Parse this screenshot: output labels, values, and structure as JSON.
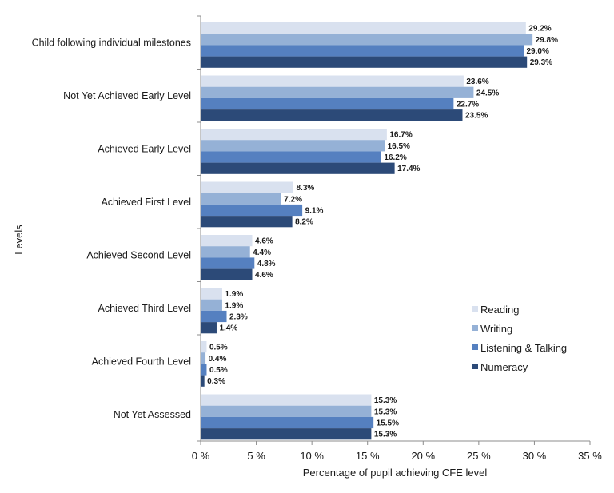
{
  "chart_data": {
    "type": "bar",
    "orientation": "horizontal",
    "title": "",
    "xlabel": "Percentage of pupil achieving  CFE level",
    "ylabel": "Levels",
    "xlim": [
      0,
      35
    ],
    "xticks": [
      "0 %",
      "5 %",
      "10 %",
      "15 %",
      "20 %",
      "25 %",
      "30 %",
      "35 %"
    ],
    "grid": false,
    "legend_position": "right",
    "categories": [
      "Child following individual milestones",
      "Not Yet Achieved Early Level",
      "Achieved Early Level",
      "Achieved First Level",
      "Achieved Second Level",
      "Achieved Third Level",
      "Achieved Fourth Level",
      "Not Yet Assessed"
    ],
    "series": [
      {
        "name": "Reading",
        "color": "#d9e1ef",
        "values": [
          29.2,
          23.6,
          16.7,
          8.3,
          4.6,
          1.9,
          0.5,
          15.3
        ],
        "labels": [
          "29.2%",
          "23.6%",
          "16.7%",
          "8.3%",
          "4.6%",
          "1.9%",
          "0.5%",
          "15.3%"
        ]
      },
      {
        "name": "Writing",
        "color": "#95b1d6",
        "values": [
          29.8,
          24.5,
          16.5,
          7.2,
          4.4,
          1.9,
          0.4,
          15.3
        ],
        "labels": [
          "29.8%",
          "24.5%",
          "16.5%",
          "7.2%",
          "4.4%",
          "1.9%",
          "0.4%",
          "15.3%"
        ]
      },
      {
        "name": "Listening & Talking",
        "color": "#5580c0",
        "values": [
          29.0,
          22.7,
          16.2,
          9.1,
          4.8,
          2.3,
          0.5,
          15.5
        ],
        "labels": [
          "29.0%",
          "22.7%",
          "16.2%",
          "9.1%",
          "4.8%",
          "2.3%",
          "0.5%",
          "15.5%"
        ]
      },
      {
        "name": "Numeracy",
        "color": "#2c4a78",
        "values": [
          29.3,
          23.5,
          17.4,
          8.2,
          4.6,
          1.4,
          0.3,
          15.3
        ],
        "labels": [
          "29.3%",
          "23.5%",
          "17.4%",
          "8.2%",
          "4.6%",
          "1.4%",
          "0.3%",
          "15.3%"
        ]
      }
    ]
  }
}
